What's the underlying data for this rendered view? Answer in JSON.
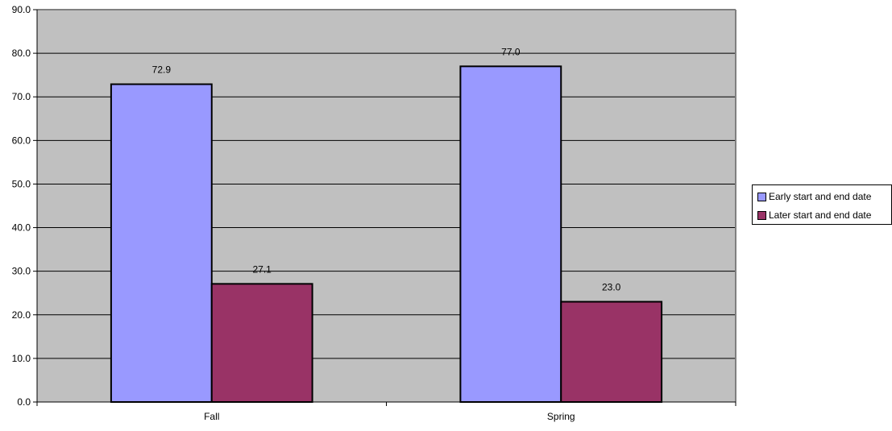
{
  "chart_data": {
    "type": "bar",
    "title": "",
    "xlabel": "",
    "ylabel": "",
    "categories": [
      "Fall",
      "Spring"
    ],
    "series": [
      {
        "name": "Early start and end date",
        "values": [
          72.9,
          77.0
        ],
        "labels": [
          "72.9",
          "77.0"
        ],
        "color": "#9999FF"
      },
      {
        "name": "Later start and end date",
        "values": [
          27.1,
          23.0
        ],
        "labels": [
          "27.1",
          "23.0"
        ],
        "color": "#993366"
      }
    ],
    "ylim": [
      0,
      90
    ],
    "yticks": [
      "0.0",
      "10.0",
      "20.0",
      "30.0",
      "40.0",
      "50.0",
      "60.0",
      "70.0",
      "80.0",
      "90.0"
    ],
    "grid": true,
    "plot_background": "#C0C0C0",
    "legend_position": "right"
  }
}
